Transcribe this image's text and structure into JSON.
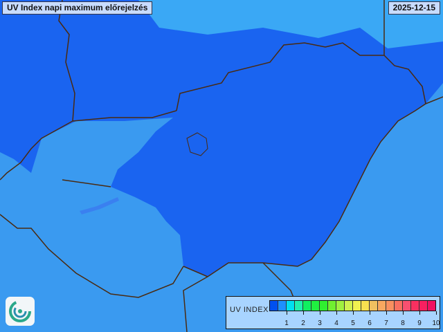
{
  "header": {
    "title": "UV Index napi maximum előrejelzés",
    "date": "2025-12-15"
  },
  "legend": {
    "label": "UV INDEX",
    "colors": [
      "#0050f0",
      "#1e90ff",
      "#00e0f0",
      "#20f0b0",
      "#10f060",
      "#20f040",
      "#30f030",
      "#70f030",
      "#a0f040",
      "#d0f050",
      "#f0f050",
      "#f8e050",
      "#f0c060",
      "#f8a860",
      "#f89060",
      "#f87060",
      "#f85070",
      "#f83060",
      "#f82060",
      "#f01060"
    ],
    "ticks": [
      "1",
      "2",
      "3",
      "4",
      "5",
      "6",
      "7",
      "8",
      "9",
      "10"
    ]
  },
  "map": {
    "background_color": "#3a9af0",
    "region_color": "#1a64f0",
    "border_color": "#4a2a10"
  },
  "logo": {
    "icon": "swirl-logo-icon"
  }
}
